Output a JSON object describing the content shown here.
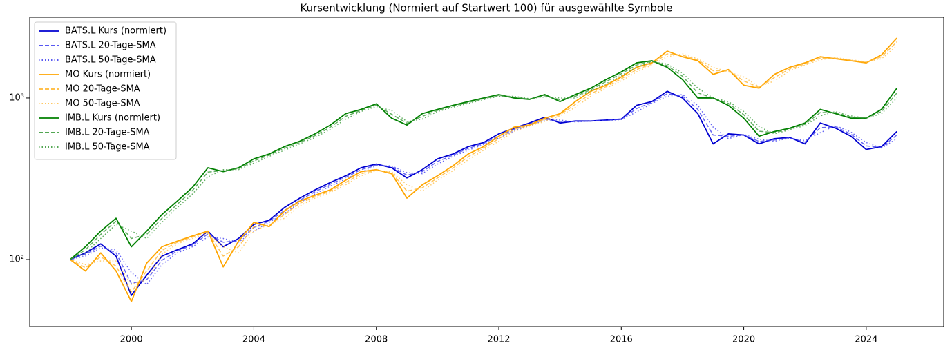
{
  "chart_data": {
    "type": "line",
    "title": "Kursentwicklung (Normiert auf Startwert 100) für ausgewählte Symbole",
    "x": [
      1998,
      1998.5,
      1999,
      1999.5,
      2000,
      2000.5,
      2001,
      2001.5,
      2002,
      2002.5,
      2003,
      2003.5,
      2004,
      2004.5,
      2005,
      2005.5,
      2006,
      2006.5,
      2007,
      2007.5,
      2008,
      2008.5,
      2009,
      2009.5,
      2010,
      2010.5,
      2011,
      2011.5,
      2012,
      2012.5,
      2013,
      2013.5,
      2014,
      2014.5,
      2015,
      2015.5,
      2016,
      2016.5,
      2017,
      2017.5,
      2018,
      2018.5,
      2019,
      2019.5,
      2020,
      2020.5,
      2021,
      2021.5,
      2022,
      2022.5,
      2023,
      2023.5,
      2024,
      2024.5,
      2025
    ],
    "xlim": [
      1996.68,
      2026.53
    ],
    "xticks": [
      2000,
      2004,
      2008,
      2012,
      2016,
      2020,
      2024
    ],
    "yscale": "log",
    "ylim": [
      38.5,
      3160
    ],
    "yticks": [
      {
        "value": 100,
        "label": "10²"
      },
      {
        "value": 1000,
        "label": "10³"
      }
    ],
    "legend": "upper left",
    "series": [
      {
        "name": "BATS.L Kurs (normiert)",
        "color": "#0000d0",
        "linestyle": "solid",
        "values": [
          100,
          110,
          125,
          105,
          60,
          80,
          105,
          115,
          125,
          150,
          120,
          135,
          165,
          175,
          210,
          240,
          270,
          300,
          330,
          370,
          390,
          370,
          320,
          360,
          420,
          450,
          500,
          530,
          600,
          650,
          700,
          760,
          700,
          720,
          720,
          730,
          740,
          900,
          950,
          1100,
          1000,
          800,
          520,
          600,
          590,
          520,
          560,
          570,
          520,
          700,
          650,
          580,
          480,
          500,
          620
        ]
      },
      {
        "name": "BATS.L 20-Tage-SMA",
        "color": "#4040f0",
        "linestyle": "dashed",
        "values": [
          100,
          108,
          121,
          110,
          71,
          75,
          99,
          113,
          123,
          144,
          128,
          131,
          158,
          173,
          201,
          233,
          263,
          293,
          323,
          360,
          385,
          375,
          333,
          350,
          405,
          443,
          488,
          523,
          583,
          638,
          688,
          745,
          715,
          715,
          720,
          728,
          738,
          860,
          938,
          1063,
          1025,
          850,
          590,
          580,
          590,
          538,
          550,
          568,
          533,
          655,
          663,
          598,
          505,
          495,
          590
        ]
      },
      {
        "name": "BATS.L 50-Tage-SMA",
        "color": "#4040f0",
        "linestyle": "dotted",
        "values": [
          100,
          105,
          118,
          115,
          83,
          70,
          93,
          110,
          120,
          138,
          135,
          128,
          150,
          170,
          193,
          225,
          255,
          285,
          315,
          350,
          380,
          380,
          345,
          340,
          390,
          435,
          475,
          515,
          565,
          625,
          675,
          730,
          730,
          710,
          720,
          725,
          735,
          820,
          925,
          1025,
          1050,
          900,
          660,
          560,
          595,
          555,
          540,
          565,
          545,
          610,
          675,
          615,
          530,
          490,
          560
        ]
      },
      {
        "name": "MO Kurs (normiert)",
        "color": "#ffa500",
        "linestyle": "solid",
        "values": [
          100,
          85,
          110,
          85,
          55,
          95,
          120,
          130,
          140,
          150,
          90,
          130,
          170,
          160,
          200,
          230,
          250,
          270,
          310,
          350,
          360,
          340,
          240,
          290,
          330,
          380,
          450,
          500,
          580,
          660,
          680,
          750,
          800,
          950,
          1100,
          1200,
          1350,
          1550,
          1650,
          1950,
          1800,
          1700,
          1400,
          1500,
          1200,
          1150,
          1400,
          1550,
          1650,
          1800,
          1750,
          1700,
          1650,
          1850,
          2350
        ]
      },
      {
        "name": "MO 20-Tage-SMA",
        "color": "#ffb733",
        "linestyle": "dashed",
        "values": [
          100,
          89,
          104,
          91,
          63,
          85,
          114,
          128,
          138,
          148,
          105,
          120,
          160,
          163,
          190,
          223,
          245,
          265,
          300,
          340,
          358,
          345,
          265,
          278,
          320,
          368,
          433,
          488,
          560,
          640,
          675,
          733,
          788,
          913,
          1063,
          1175,
          1313,
          1500,
          1625,
          1875,
          1838,
          1725,
          1475,
          1475,
          1275,
          1163,
          1338,
          1513,
          1625,
          1763,
          1763,
          1713,
          1663,
          1800,
          2225
        ]
      },
      {
        "name": "MO 50-Tage-SMA",
        "color": "#ffc04d",
        "linestyle": "dotted",
        "values": [
          100,
          93,
          98,
          98,
          70,
          75,
          108,
          125,
          135,
          145,
          120,
          110,
          150,
          165,
          180,
          215,
          240,
          260,
          290,
          330,
          355,
          350,
          290,
          265,
          310,
          355,
          415,
          475,
          540,
          620,
          670,
          715,
          775,
          875,
          1025,
          1150,
          1275,
          1450,
          1600,
          1800,
          1875,
          1750,
          1550,
          1450,
          1350,
          1175,
          1275,
          1475,
          1600,
          1725,
          1775,
          1725,
          1675,
          1750,
          2100
        ]
      },
      {
        "name": "IMB.L Kurs (normiert)",
        "color": "#008000",
        "linestyle": "solid",
        "values": [
          100,
          120,
          150,
          180,
          120,
          150,
          190,
          230,
          280,
          370,
          350,
          370,
          420,
          450,
          500,
          540,
          600,
          680,
          800,
          850,
          920,
          750,
          680,
          800,
          850,
          900,
          950,
          1000,
          1050,
          1000,
          980,
          1050,
          950,
          1050,
          1150,
          1300,
          1450,
          1650,
          1700,
          1550,
          1300,
          1000,
          1000,
          900,
          750,
          580,
          620,
          650,
          700,
          850,
          800,
          750,
          750,
          850,
          1150
        ]
      },
      {
        "name": "IMB.L 20-Tage-SMA",
        "color": "#3a9a3a",
        "linestyle": "dashed",
        "values": [
          100,
          115,
          143,
          173,
          135,
          143,
          180,
          220,
          268,
          348,
          355,
          365,
          408,
          443,
          488,
          530,
          585,
          660,
          770,
          838,
          903,
          793,
          698,
          770,
          838,
          888,
          938,
          988,
          1038,
          1013,
          985,
          1033,
          975,
          1025,
          1125,
          1263,
          1413,
          1600,
          1688,
          1588,
          1363,
          1075,
          1000,
          925,
          788,
          623,
          610,
          643,
          688,
          813,
          813,
          763,
          750,
          825,
          1075
        ]
      },
      {
        "name": "IMB.L 50-Tage-SMA",
        "color": "#3a9a3a",
        "linestyle": "dotted",
        "values": [
          100,
          110,
          135,
          165,
          150,
          135,
          170,
          210,
          255,
          325,
          360,
          360,
          395,
          435,
          475,
          520,
          570,
          640,
          740,
          825,
          885,
          835,
          715,
          740,
          825,
          875,
          925,
          975,
          1025,
          1025,
          990,
          1015,
          1000,
          1000,
          1100,
          1225,
          1375,
          1550,
          1675,
          1625,
          1425,
          1150,
          1000,
          950,
          825,
          665,
          600,
          635,
          675,
          775,
          825,
          775,
          750,
          800,
          1000
        ]
      }
    ]
  }
}
